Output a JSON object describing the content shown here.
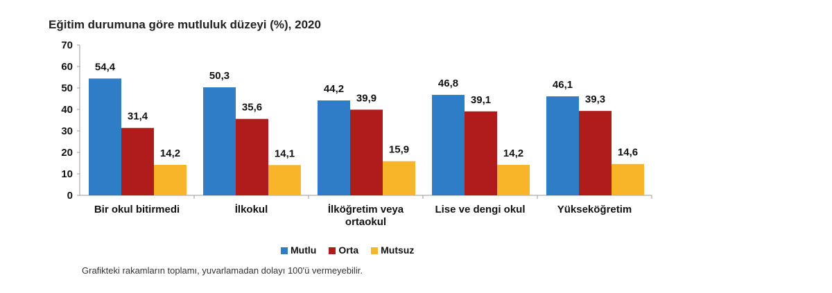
{
  "chart_data": {
    "type": "bar",
    "title": "Eğitim durumuna göre mutluluk düzeyi (%), 2020",
    "categories": [
      [
        "Bir okul bitirmedi"
      ],
      [
        "İlkokul"
      ],
      [
        "İlköğretim veya",
        "ortaokul"
      ],
      [
        "Lise ve dengi okul"
      ],
      [
        "Yükseköğretim"
      ]
    ],
    "series": [
      {
        "name": "Mutlu",
        "color": "#2E7DC6",
        "values": [
          54.4,
          50.3,
          44.2,
          46.8,
          46.1
        ]
      },
      {
        "name": "Orta",
        "color": "#B01C1C",
        "values": [
          31.4,
          35.6,
          39.9,
          39.1,
          39.3
        ]
      },
      {
        "name": "Mutsuz",
        "color": "#F9B52A",
        "values": [
          14.2,
          14.1,
          15.9,
          14.2,
          14.6
        ]
      }
    ],
    "ylim": [
      0,
      70
    ],
    "yticks": [
      0,
      10,
      20,
      30,
      40,
      50,
      60,
      70
    ],
    "legend_position": "bottom",
    "note": "Grafikteki rakamların toplamı, yuvarlamadan dolayı 100'ü vermeyebilir."
  }
}
